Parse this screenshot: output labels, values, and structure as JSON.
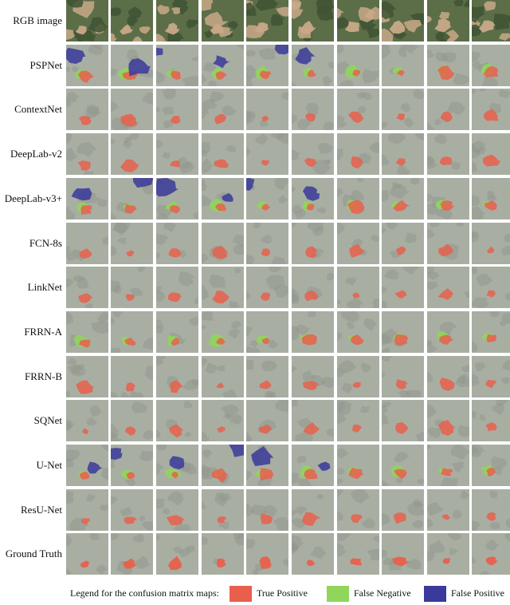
{
  "rows": [
    {
      "label": "RGB image",
      "kind": "rgb"
    },
    {
      "label": "PSPNet",
      "kind": "map"
    },
    {
      "label": "ContextNet",
      "kind": "map"
    },
    {
      "label": "DeepLab-v2",
      "kind": "map"
    },
    {
      "label": "DeepLab-v3+",
      "kind": "map"
    },
    {
      "label": "FCN-8s",
      "kind": "map"
    },
    {
      "label": "LinkNet",
      "kind": "map"
    },
    {
      "label": "FRRN-A",
      "kind": "map"
    },
    {
      "label": "FRRN-B",
      "kind": "map"
    },
    {
      "label": "SQNet",
      "kind": "map"
    },
    {
      "label": "U-Net",
      "kind": "map"
    },
    {
      "label": "ResU-Net",
      "kind": "map"
    },
    {
      "label": "Ground Truth",
      "kind": "map"
    }
  ],
  "columns": 10,
  "legend": {
    "title": "Legend for the confusion matrix maps:",
    "items": [
      {
        "label": "True Positive",
        "color": "#e8604c"
      },
      {
        "label": "False Negative",
        "color": "#8fd65a"
      },
      {
        "label": "False Positive",
        "color": "#3a3a9a"
      }
    ]
  },
  "colors": {
    "map_background": "#a9aea3",
    "terrain_green": "#5b6e48",
    "terrain_tan": "#c9a98a"
  }
}
